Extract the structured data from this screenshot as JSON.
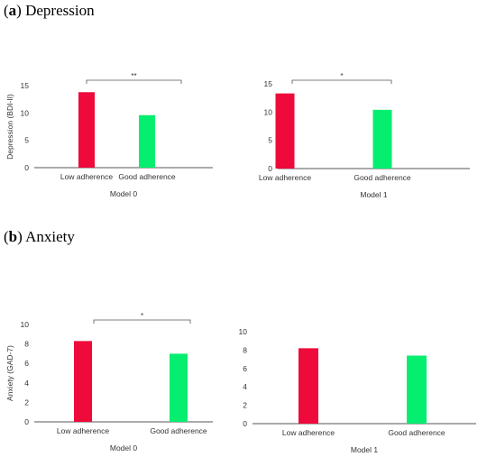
{
  "sections": {
    "a": {
      "letter": "a",
      "title": "Depression"
    },
    "b": {
      "letter": "b",
      "title": "Anxiety"
    }
  },
  "colors": {
    "low_adherence": "#ee0a3b",
    "good_adherence": "#06ee6f",
    "axis": "#555555"
  },
  "chart_data": [
    {
      "type": "bar",
      "panel": "a",
      "categories": [
        "Low adherence",
        "Good adherence"
      ],
      "values": [
        13.8,
        9.6
      ],
      "ylabel": "Depression (BDI-II)",
      "xlabel": "Model 0",
      "ylim": [
        0,
        15
      ],
      "yticks": [
        0,
        5,
        10,
        15
      ],
      "significance": "**"
    },
    {
      "type": "bar",
      "panel": "a",
      "categories": [
        "Low adherence",
        "Good adherence"
      ],
      "values": [
        13.3,
        10.4
      ],
      "ylabel": "",
      "xlabel": "Model 1",
      "ylim": [
        0,
        15
      ],
      "yticks": [
        0,
        5,
        10,
        15
      ],
      "significance": "*"
    },
    {
      "type": "bar",
      "panel": "b",
      "categories": [
        "Low adherence",
        "Good adherence"
      ],
      "values": [
        8.3,
        7.0
      ],
      "ylabel": "Anxiety (GAD-7)",
      "xlabel": "Model 0",
      "ylim": [
        0,
        10
      ],
      "yticks": [
        0,
        2,
        4,
        6,
        8,
        10
      ],
      "significance": "*"
    },
    {
      "type": "bar",
      "panel": "b",
      "categories": [
        "Low adherence",
        "Good adherence"
      ],
      "values": [
        8.2,
        7.4
      ],
      "ylabel": "",
      "xlabel": "Model 1",
      "ylim": [
        0,
        10
      ],
      "yticks": [
        0,
        2,
        4,
        6,
        8,
        10
      ],
      "significance": ""
    }
  ]
}
